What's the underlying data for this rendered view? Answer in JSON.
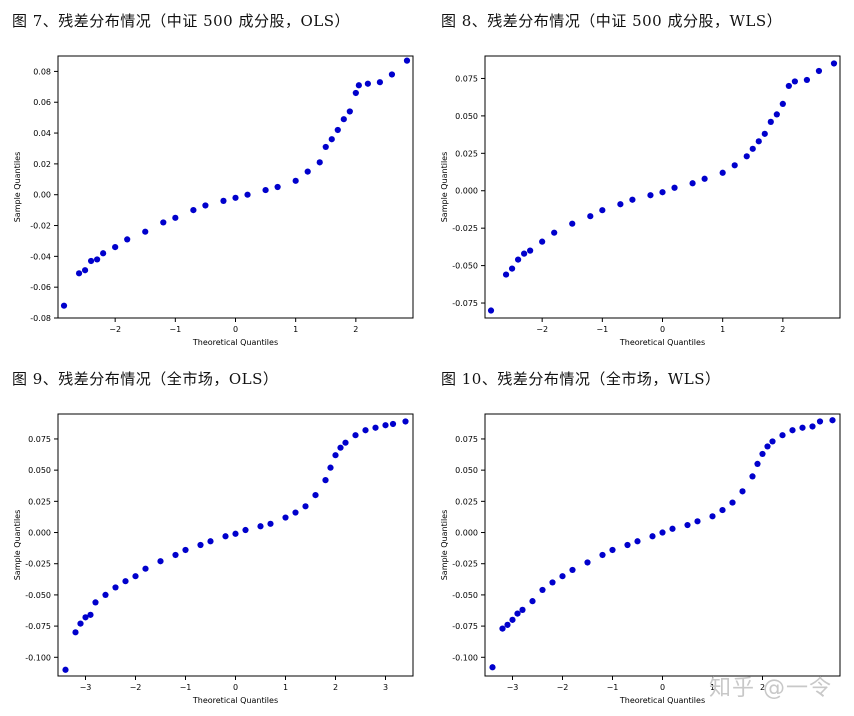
{
  "figures": [
    {
      "title": "图 7、残差分布情况（中证 500 成分股，OLS）"
    },
    {
      "title": "图 8、残差分布情况（中证 500 成分股，WLS）"
    },
    {
      "title": "图 9、残差分布情况（全市场，OLS）"
    },
    {
      "title": "图 10、残差分布情况（全市场，WLS）"
    }
  ],
  "watermark": "知乎 @一令",
  "chart_data": [
    {
      "type": "scatter",
      "title": "",
      "xlabel": "Theoretical Quantiles",
      "ylabel": "Sample Quantiles",
      "xlim": [
        -2.95,
        2.95
      ],
      "ylim": [
        -0.08,
        0.09
      ],
      "xticks": [
        -2,
        -1,
        0,
        1,
        2
      ],
      "yticks": [
        -0.08,
        -0.06,
        -0.04,
        -0.02,
        0.0,
        0.02,
        0.04,
        0.06,
        0.08
      ],
      "ytick_labels": [
        "-0.08",
        "-0.06",
        "-0.04",
        "-0.02",
        "0.00",
        "0.02",
        "0.04",
        "0.06",
        "0.08"
      ],
      "grid": false,
      "color": "#0000cc",
      "x": [
        -2.85,
        -2.6,
        -2.5,
        -2.4,
        -2.3,
        -2.2,
        -2.0,
        -1.8,
        -1.5,
        -1.2,
        -1.0,
        -0.7,
        -0.5,
        -0.2,
        0.0,
        0.2,
        0.5,
        0.7,
        1.0,
        1.2,
        1.4,
        1.5,
        1.6,
        1.7,
        1.8,
        1.9,
        2.0,
        2.05,
        2.2,
        2.4,
        2.6,
        2.85
      ],
      "y": [
        -0.072,
        -0.051,
        -0.049,
        -0.043,
        -0.042,
        -0.038,
        -0.034,
        -0.029,
        -0.024,
        -0.018,
        -0.015,
        -0.01,
        -0.007,
        -0.004,
        -0.002,
        0.0,
        0.003,
        0.005,
        0.009,
        0.015,
        0.021,
        0.031,
        0.036,
        0.042,
        0.049,
        0.054,
        0.066,
        0.071,
        0.072,
        0.073,
        0.078,
        0.087
      ]
    },
    {
      "type": "scatter",
      "title": "",
      "xlabel": "Theoretical Quantiles",
      "ylabel": "Sample Quantiles",
      "xlim": [
        -2.95,
        2.95
      ],
      "ylim": [
        -0.085,
        0.09
      ],
      "xticks": [
        -2,
        -1,
        0,
        1,
        2
      ],
      "yticks": [
        -0.075,
        -0.05,
        -0.025,
        0.0,
        0.025,
        0.05,
        0.075
      ],
      "ytick_labels": [
        "-0.075",
        "-0.050",
        "-0.025",
        "0.000",
        "0.025",
        "0.050",
        "0.075"
      ],
      "grid": false,
      "color": "#0000cc",
      "x": [
        -2.85,
        -2.6,
        -2.5,
        -2.4,
        -2.3,
        -2.2,
        -2.0,
        -1.8,
        -1.5,
        -1.2,
        -1.0,
        -0.7,
        -0.5,
        -0.2,
        0.0,
        0.2,
        0.5,
        0.7,
        1.0,
        1.2,
        1.4,
        1.5,
        1.6,
        1.7,
        1.8,
        1.9,
        2.0,
        2.1,
        2.2,
        2.4,
        2.6,
        2.85
      ],
      "y": [
        -0.08,
        -0.056,
        -0.052,
        -0.046,
        -0.042,
        -0.04,
        -0.034,
        -0.028,
        -0.022,
        -0.017,
        -0.013,
        -0.009,
        -0.006,
        -0.003,
        -0.001,
        0.002,
        0.005,
        0.008,
        0.012,
        0.017,
        0.023,
        0.028,
        0.033,
        0.038,
        0.046,
        0.051,
        0.058,
        0.07,
        0.073,
        0.074,
        0.08,
        0.085
      ]
    },
    {
      "type": "scatter",
      "title": "",
      "xlabel": "Theoretical Quantiles",
      "ylabel": "Sample Quantiles",
      "xlim": [
        -3.55,
        3.55
      ],
      "ylim": [
        -0.115,
        0.095
      ],
      "xticks": [
        -3,
        -2,
        -1,
        0,
        1,
        2,
        3
      ],
      "yticks": [
        -0.1,
        -0.075,
        -0.05,
        -0.025,
        0.0,
        0.025,
        0.05,
        0.075
      ],
      "ytick_labels": [
        "-0.100",
        "-0.075",
        "-0.050",
        "-0.025",
        "0.000",
        "0.025",
        "0.050",
        "0.075"
      ],
      "grid": false,
      "color": "#0000cc",
      "x": [
        -3.4,
        -3.2,
        -3.1,
        -3.0,
        -2.9,
        -2.8,
        -2.6,
        -2.4,
        -2.2,
        -2.0,
        -1.8,
        -1.5,
        -1.2,
        -1.0,
        -0.7,
        -0.5,
        -0.2,
        0.0,
        0.2,
        0.5,
        0.7,
        1.0,
        1.2,
        1.4,
        1.6,
        1.8,
        1.9,
        2.0,
        2.1,
        2.2,
        2.4,
        2.6,
        2.8,
        3.0,
        3.15,
        3.4
      ],
      "y": [
        -0.11,
        -0.08,
        -0.073,
        -0.068,
        -0.066,
        -0.056,
        -0.05,
        -0.044,
        -0.039,
        -0.035,
        -0.029,
        -0.023,
        -0.018,
        -0.014,
        -0.01,
        -0.007,
        -0.003,
        -0.001,
        0.002,
        0.005,
        0.007,
        0.012,
        0.016,
        0.021,
        0.03,
        0.042,
        0.052,
        0.062,
        0.068,
        0.072,
        0.078,
        0.082,
        0.084,
        0.086,
        0.087,
        0.089
      ]
    },
    {
      "type": "scatter",
      "title": "",
      "xlabel": "Theoretical Quantiles",
      "ylabel": "Sample Quantiles",
      "xlim": [
        -3.55,
        3.55
      ],
      "ylim": [
        -0.115,
        0.095
      ],
      "xticks": [
        -3,
        -2,
        -1,
        0,
        1,
        2
      ],
      "yticks": [
        -0.1,
        -0.075,
        -0.05,
        -0.025,
        0.0,
        0.025,
        0.05,
        0.075
      ],
      "ytick_labels": [
        "-0.100",
        "-0.075",
        "-0.050",
        "-0.025",
        "0.000",
        "0.025",
        "0.050",
        "0.075"
      ],
      "grid": false,
      "color": "#0000cc",
      "x": [
        -3.4,
        -3.2,
        -3.1,
        -3.0,
        -2.9,
        -2.8,
        -2.6,
        -2.4,
        -2.2,
        -2.0,
        -1.8,
        -1.5,
        -1.2,
        -1.0,
        -0.7,
        -0.5,
        -0.2,
        0.0,
        0.2,
        0.5,
        0.7,
        1.0,
        1.2,
        1.4,
        1.6,
        1.8,
        1.9,
        2.0,
        2.1,
        2.2,
        2.4,
        2.6,
        2.8,
        3.0,
        3.15,
        3.4
      ],
      "y": [
        -0.108,
        -0.077,
        -0.074,
        -0.07,
        -0.065,
        -0.062,
        -0.055,
        -0.046,
        -0.04,
        -0.035,
        -0.03,
        -0.024,
        -0.018,
        -0.014,
        -0.01,
        -0.007,
        -0.003,
        0.0,
        0.003,
        0.006,
        0.009,
        0.013,
        0.018,
        0.024,
        0.033,
        0.045,
        0.055,
        0.063,
        0.069,
        0.073,
        0.078,
        0.082,
        0.084,
        0.085,
        0.089,
        0.09
      ]
    }
  ]
}
